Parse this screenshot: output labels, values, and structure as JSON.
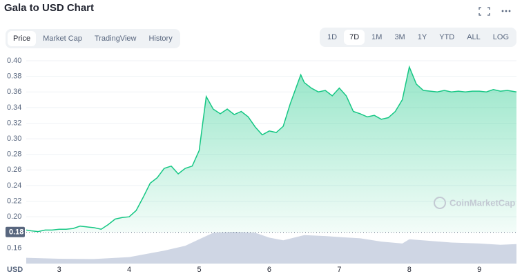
{
  "header": {
    "title": "Gala to USD Chart"
  },
  "tabs": [
    "Price",
    "Market Cap",
    "TradingView",
    "History"
  ],
  "ranges": [
    "1D",
    "7D",
    "1M",
    "3M",
    "1Y",
    "YTD",
    "ALL",
    "LOG"
  ],
  "chart_data": {
    "type": "line",
    "watermark": "CoinMarketCap",
    "y_axis_label": "USD",
    "x": [
      2.53,
      2.6,
      2.7,
      2.8,
      2.9,
      3.0,
      3.1,
      3.2,
      3.3,
      3.4,
      3.5,
      3.6,
      3.7,
      3.8,
      3.9,
      4.0,
      4.1,
      4.2,
      4.3,
      4.4,
      4.5,
      4.6,
      4.7,
      4.8,
      4.9,
      5.0,
      5.05,
      5.1,
      5.2,
      5.3,
      5.4,
      5.5,
      5.6,
      5.7,
      5.8,
      5.9,
      6.0,
      6.1,
      6.2,
      6.3,
      6.45,
      6.5,
      6.6,
      6.7,
      6.8,
      6.9,
      7.0,
      7.1,
      7.2,
      7.3,
      7.4,
      7.5,
      7.6,
      7.7,
      7.8,
      7.9,
      8.0,
      8.1,
      8.2,
      8.3,
      8.4,
      8.5,
      8.6,
      8.7,
      8.8,
      8.9,
      9.0,
      9.1,
      9.2,
      9.3,
      9.4,
      9.53
    ],
    "series": [
      {
        "color": "#16c784",
        "values": [
          0.183,
          0.182,
          0.181,
          0.183,
          0.183,
          0.184,
          0.184,
          0.185,
          0.188,
          0.187,
          0.186,
          0.184,
          0.19,
          0.197,
          0.199,
          0.2,
          0.208,
          0.225,
          0.243,
          0.25,
          0.262,
          0.265,
          0.255,
          0.262,
          0.265,
          0.285,
          0.32,
          0.354,
          0.338,
          0.332,
          0.338,
          0.331,
          0.335,
          0.328,
          0.315,
          0.305,
          0.31,
          0.308,
          0.316,
          0.345,
          0.382,
          0.372,
          0.365,
          0.36,
          0.362,
          0.355,
          0.365,
          0.355,
          0.335,
          0.332,
          0.328,
          0.33,
          0.325,
          0.327,
          0.335,
          0.35,
          0.392,
          0.37,
          0.362,
          0.361,
          0.36,
          0.362,
          0.36,
          0.361,
          0.36,
          0.361,
          0.361,
          0.36,
          0.363,
          0.361,
          0.362,
          0.36
        ]
      }
    ],
    "volume": {
      "color": "#cfd6e4",
      "x": [
        2.53,
        3.0,
        3.5,
        4.0,
        4.5,
        4.8,
        5.0,
        5.2,
        5.5,
        5.8,
        6.0,
        6.2,
        6.5,
        6.8,
        7.0,
        7.3,
        7.6,
        7.9,
        8.0,
        8.3,
        8.6,
        9.0,
        9.3,
        9.53
      ],
      "values": [
        18,
        15,
        14,
        20,
        40,
        55,
        75,
        95,
        98,
        95,
        80,
        72,
        88,
        85,
        82,
        78,
        68,
        62,
        75,
        70,
        65,
        62,
        58,
        60
      ]
    },
    "baseline": 0.18,
    "xlim": [
      2.53,
      9.53
    ],
    "xticks": [
      3,
      4,
      5,
      6,
      7,
      8,
      9
    ],
    "ylim": [
      0.14,
      0.4
    ],
    "yticks": [
      0.16,
      0.18,
      {
        "value": 0.2,
        "label": "0.20"
      },
      0.22,
      0.24,
      0.26,
      0.28,
      {
        "value": 0.3,
        "label": "0.30"
      },
      0.32,
      0.34,
      0.36,
      0.38,
      {
        "value": 0.4,
        "label": "0.40"
      }
    ],
    "grid": true
  }
}
